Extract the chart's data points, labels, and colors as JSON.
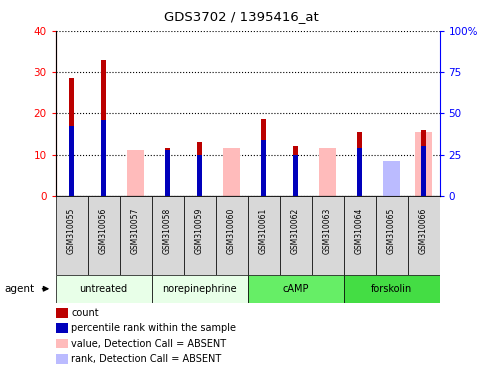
{
  "title": "GDS3702 / 1395416_at",
  "samples": [
    "GSM310055",
    "GSM310056",
    "GSM310057",
    "GSM310058",
    "GSM310059",
    "GSM310060",
    "GSM310061",
    "GSM310062",
    "GSM310063",
    "GSM310064",
    "GSM310065",
    "GSM310066"
  ],
  "count_values": [
    28.5,
    33.0,
    null,
    11.5,
    13.0,
    null,
    18.5,
    12.0,
    null,
    15.5,
    null,
    16.0
  ],
  "rank_values_pct": [
    42,
    46,
    null,
    28,
    25,
    null,
    34,
    25,
    null,
    29,
    null,
    30
  ],
  "absent_value_values": [
    null,
    null,
    11.0,
    null,
    null,
    11.5,
    null,
    null,
    11.5,
    null,
    8.0,
    15.5
  ],
  "absent_rank_pct": [
    null,
    null,
    null,
    null,
    null,
    null,
    null,
    null,
    null,
    null,
    21,
    null
  ],
  "groups": [
    {
      "label": "untreated",
      "start": 0,
      "end": 3,
      "color": "#e8ffe8"
    },
    {
      "label": "norepinephrine",
      "start": 3,
      "end": 6,
      "color": "#e8ffe8"
    },
    {
      "label": "cAMP",
      "start": 6,
      "end": 9,
      "color": "#66ee66"
    },
    {
      "label": "forskolin",
      "start": 9,
      "end": 12,
      "color": "#44dd44"
    }
  ],
  "ylim_left": [
    0,
    40
  ],
  "ylim_right": [
    0,
    100
  ],
  "yticks_left": [
    0,
    10,
    20,
    30,
    40
  ],
  "yticks_right": [
    0,
    25,
    50,
    75,
    100
  ],
  "yticklabels_right": [
    "0",
    "25",
    "50",
    "75",
    "100%"
  ],
  "color_count": "#bb0000",
  "color_rank": "#0000bb",
  "color_absent_value": "#ffbbbb",
  "color_absent_rank": "#bbbbff",
  "agent_label": "agent",
  "legend_items": [
    {
      "color": "#bb0000",
      "label": "count"
    },
    {
      "color": "#0000bb",
      "label": "percentile rank within the sample"
    },
    {
      "color": "#ffbbbb",
      "label": "value, Detection Call = ABSENT"
    },
    {
      "color": "#bbbbff",
      "label": "rank, Detection Call = ABSENT"
    }
  ]
}
